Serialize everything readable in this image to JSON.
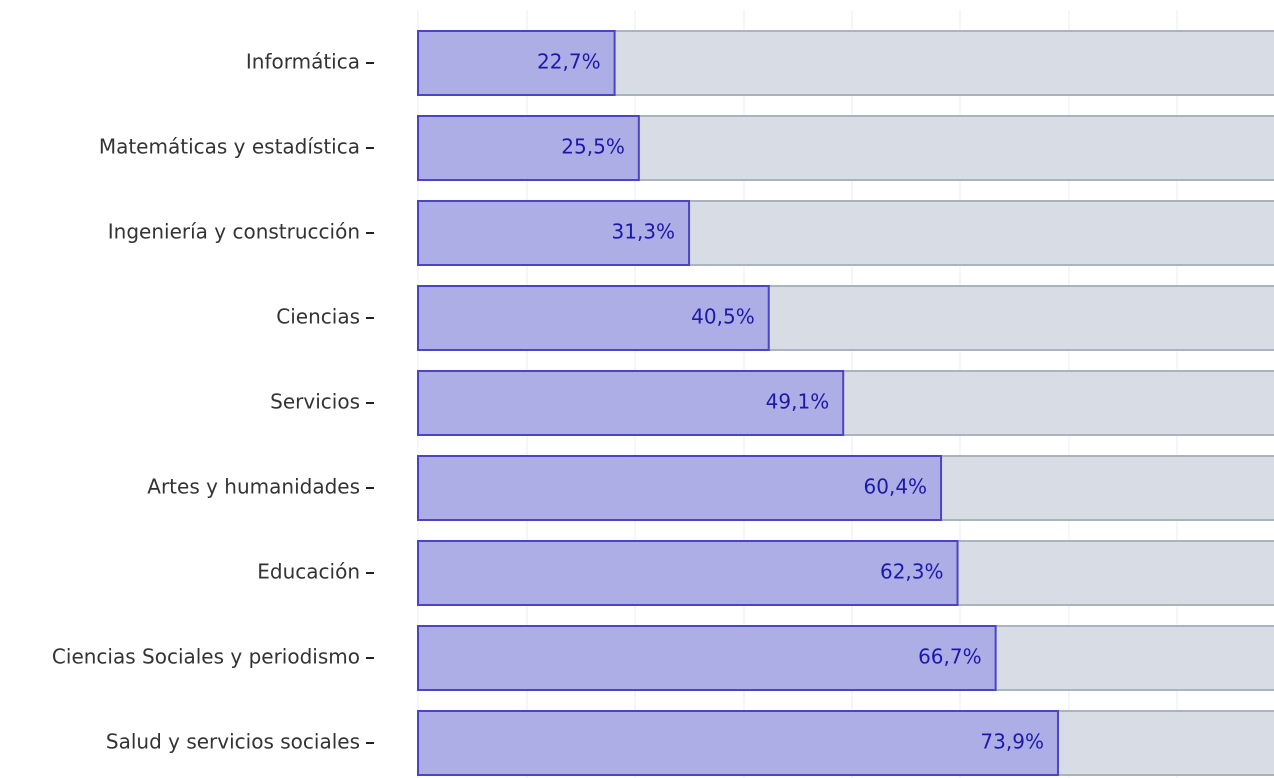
{
  "chart_data": {
    "type": "barh",
    "categories": [
      "Informática",
      "Matemáticas y estadística",
      "Ingeniería y construcción",
      "Ciencias",
      "Servicios",
      "Artes y humanidades",
      "Educación",
      "Ciencias Sociales y periodismo",
      "Salud y servicios sociales"
    ],
    "values": [
      22.7,
      25.5,
      31.3,
      40.5,
      49.1,
      60.4,
      62.3,
      66.7,
      73.9
    ],
    "value_labels": [
      "22,7%",
      "25,5%",
      "31,3%",
      "40,5%",
      "49,1%",
      "60,4%",
      "62,3%",
      "66,7%",
      "73,9%"
    ],
    "color": "#aeaee6",
    "edge_color": "#4b44c4",
    "background_color": "#d8dce4",
    "xlim": [
      0,
      100
    ]
  }
}
